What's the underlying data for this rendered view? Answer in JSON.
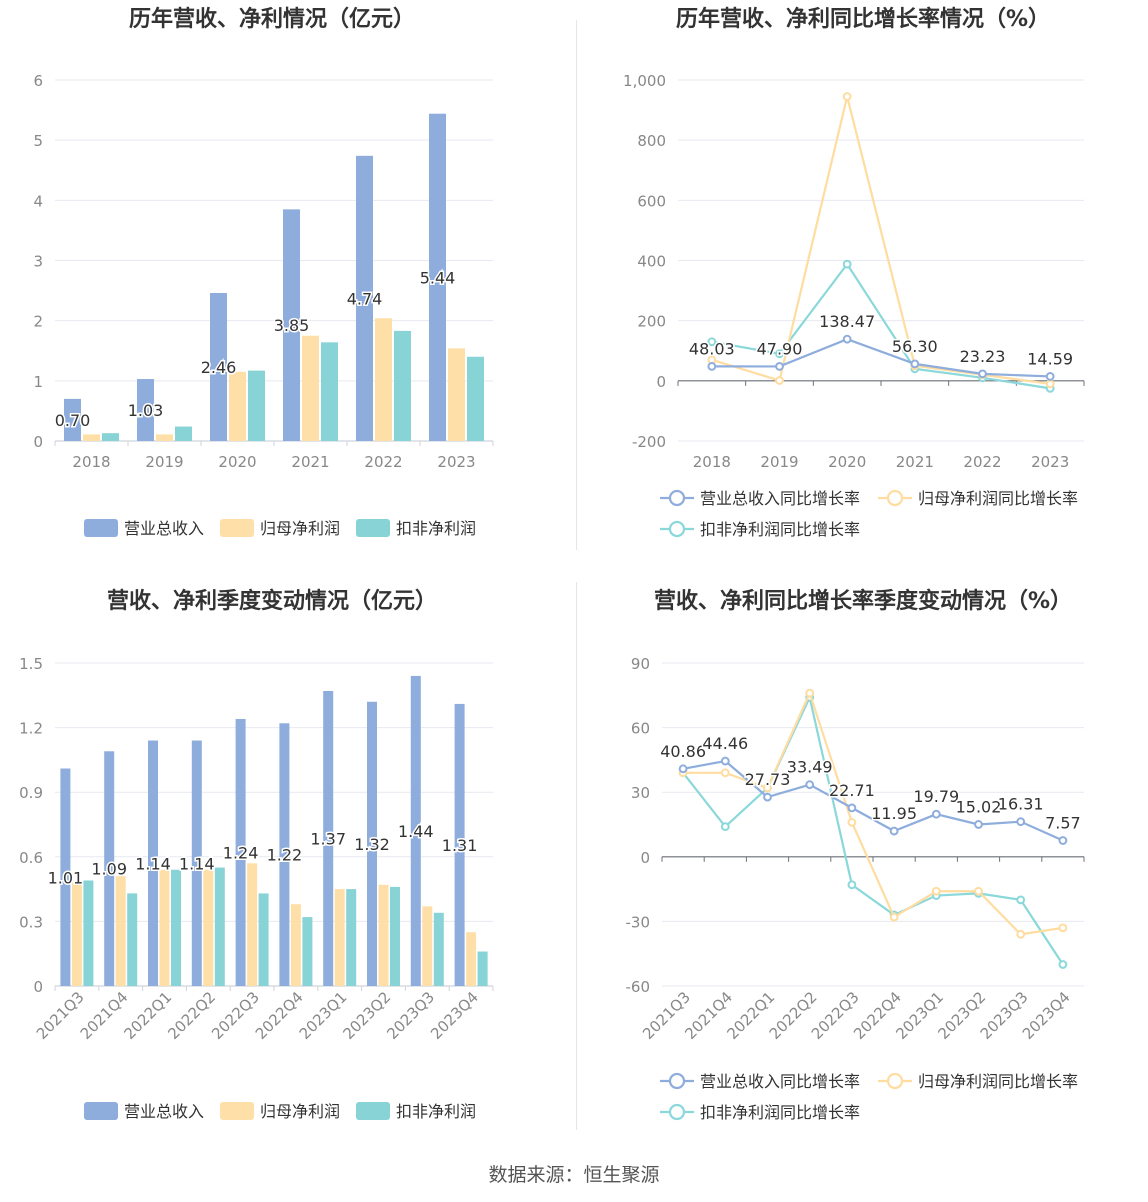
{
  "source": "数据来源：恒生聚源",
  "colors": {
    "revenue": "#8eaddc",
    "net_profit": "#ffdfa8",
    "deducted": "#88d3d6",
    "grid": "#e6e9f0",
    "axis": "#6e7079",
    "text": "#333333"
  },
  "chart_data": [
    {
      "id": "annual-amount",
      "type": "bar",
      "title": "历年营收、净利情况（亿元）",
      "categories": [
        "2018",
        "2019",
        "2020",
        "2021",
        "2022",
        "2023"
      ],
      "series": [
        {
          "name": "营业总收入",
          "values": [
            0.7,
            1.03,
            2.46,
            3.85,
            4.74,
            5.44
          ]
        },
        {
          "name": "归母净利润",
          "values": [
            0.11,
            0.11,
            1.15,
            1.75,
            2.04,
            1.54
          ]
        },
        {
          "name": "扣非净利润",
          "values": [
            0.13,
            0.24,
            1.17,
            1.64,
            1.83,
            1.4
          ]
        }
      ],
      "labels": [
        "0.70",
        "1.03",
        "2.46",
        "3.85",
        "4.74",
        "5.44"
      ],
      "yticks": [
        "0",
        "1",
        "2",
        "3",
        "4",
        "5",
        "6"
      ],
      "ylim": [
        0,
        6
      ]
    },
    {
      "id": "annual-growth",
      "type": "line",
      "title": "历年营收、净利同比增长率情况（%）",
      "categories": [
        "2018",
        "2019",
        "2020",
        "2021",
        "2022",
        "2023"
      ],
      "series": [
        {
          "name": "营业总收入同比增长率",
          "values": [
            48.03,
            47.9,
            138.47,
            56.3,
            23.23,
            14.59
          ]
        },
        {
          "name": "归母净利润同比增长率",
          "values": [
            70,
            1,
            945,
            50,
            20,
            -10
          ]
        },
        {
          "name": "扣非净利润同比增长率",
          "values": [
            130,
            90,
            388,
            40,
            10,
            -25
          ]
        }
      ],
      "labels": [
        "48.03",
        "47.90",
        "138.47",
        "56.30",
        "23.23",
        "14.59"
      ],
      "yticks": [
        "-200",
        "0",
        "200",
        "400",
        "600",
        "800",
        "1,000"
      ],
      "ylim": [
        -200,
        1000
      ]
    },
    {
      "id": "quarterly-amount",
      "type": "bar",
      "title": "营收、净利季度变动情况（亿元）",
      "categories": [
        "2021Q3",
        "2021Q4",
        "2022Q1",
        "2022Q2",
        "2022Q3",
        "2022Q4",
        "2023Q1",
        "2023Q2",
        "2023Q3",
        "2023Q4"
      ],
      "series": [
        {
          "name": "营业总收入",
          "values": [
            1.01,
            1.09,
            1.14,
            1.14,
            1.24,
            1.22,
            1.37,
            1.32,
            1.44,
            1.31
          ]
        },
        {
          "name": "归母净利润",
          "values": [
            0.48,
            0.51,
            0.54,
            0.54,
            0.57,
            0.38,
            0.45,
            0.47,
            0.37,
            0.25
          ]
        },
        {
          "name": "扣非净利润",
          "values": [
            0.49,
            0.43,
            0.54,
            0.55,
            0.43,
            0.32,
            0.45,
            0.46,
            0.34,
            0.16
          ]
        }
      ],
      "labels": [
        "1.01",
        "1.09",
        "1.14",
        "1.14",
        "1.24",
        "1.22",
        "1.37",
        "1.32",
        "1.44",
        "1.31"
      ],
      "yticks": [
        "0",
        "0.3",
        "0.6",
        "0.9",
        "1.2",
        "1.5"
      ],
      "ylim": [
        0,
        1.5
      ]
    },
    {
      "id": "quarterly-growth",
      "type": "line",
      "title": "营收、净利同比增长率季度变动情况（%）",
      "categories": [
        "2021Q3",
        "2021Q4",
        "2022Q1",
        "2022Q2",
        "2022Q3",
        "2022Q4",
        "2023Q1",
        "2023Q2",
        "2023Q3",
        "2023Q4"
      ],
      "series": [
        {
          "name": "营业总收入同比增长率",
          "values": [
            40.86,
            44.46,
            27.73,
            33.49,
            22.71,
            11.95,
            19.79,
            15.02,
            16.31,
            7.57
          ]
        },
        {
          "name": "归母净利润同比增长率",
          "values": [
            39,
            39,
            32,
            76,
            16,
            -28,
            -16,
            -16,
            -36,
            -33
          ]
        },
        {
          "name": "扣非净利润同比增长率",
          "values": [
            39,
            14,
            32,
            74,
            -13,
            -27,
            -18,
            -17,
            -20,
            -50
          ]
        }
      ],
      "labels": [
        "40.86",
        "44.46",
        "27.73",
        "33.49",
        "22.71",
        "11.95",
        "19.79",
        "15.02",
        "16.31",
        "7.57"
      ],
      "yticks": [
        "-60",
        "-30",
        "0",
        "30",
        "60",
        "90"
      ],
      "ylim": [
        -60,
        90
      ]
    }
  ]
}
